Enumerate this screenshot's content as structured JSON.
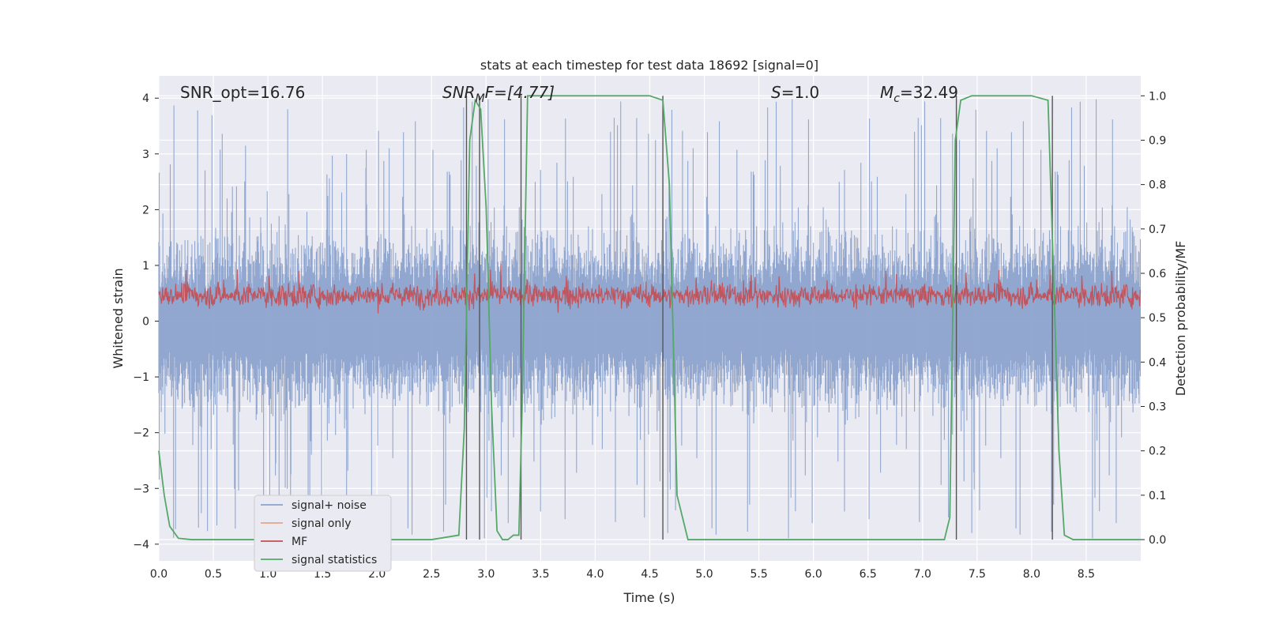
{
  "chart_data": {
    "type": "line",
    "title": "stats at each timestep for test data 18692 [signal=0]",
    "xlabel": "Time (s)",
    "ylabel": "Whitened strain",
    "ylabel_right": "Detection probability/MF",
    "xlim": [
      0,
      9.0
    ],
    "ylim": [
      -4.3,
      4.4
    ],
    "ylim_right": [
      -0.048,
      1.045
    ],
    "x_ticks": [
      "0.0",
      "0.5",
      "1.0",
      "1.5",
      "2.0",
      "2.5",
      "3.0",
      "3.5",
      "4.0",
      "4.5",
      "5.0",
      "5.5",
      "6.0",
      "6.5",
      "7.0",
      "7.5",
      "8.0",
      "8.5"
    ],
    "y_ticks": [
      "4",
      "3",
      "2",
      "1",
      "0",
      "−1",
      "−2",
      "−3",
      "−4"
    ],
    "y_ticks_right": [
      "1.0",
      "0.9",
      "0.8",
      "0.7",
      "0.6",
      "0.5",
      "0.4",
      "0.3",
      "0.2",
      "0.1",
      "0.0"
    ],
    "grid": true,
    "legend_position": "lower-left",
    "annotations": {
      "snr_opt": "SNR_opt=16.76",
      "snr_mf_main": "SNR",
      "snr_mf_sub": "M",
      "snr_mf_rest": "F=[4.77]",
      "s_main": "S",
      "s_rest": "=1.0",
      "mc_main": "M",
      "mc_sub": "c",
      "mc_rest": "=32.49"
    },
    "series": [
      {
        "name": "signal+ noise",
        "color": "#8da3cc",
        "envelope": {
          "upper_typical": 2.0,
          "upper_peak": 4.0,
          "lower_typical": -2.0,
          "lower_peak": -3.9
        }
      },
      {
        "name": "signal only",
        "color": "#e8a687",
        "values": []
      },
      {
        "name": "MF",
        "color": "#c44e52",
        "envelope": {
          "mean": 0.55,
          "low": 0.5,
          "high": 0.63
        }
      },
      {
        "name": "signal statistics",
        "color": "#55a868",
        "x": [
          0,
          0.05,
          0.1,
          0.18,
          0.3,
          0.5,
          1.0,
          1.5,
          2.0,
          2.5,
          2.75,
          2.8,
          2.85,
          2.9,
          2.95,
          3.0,
          3.05,
          3.1,
          3.15,
          3.2,
          3.25,
          3.3,
          3.33,
          3.38,
          3.45,
          3.6,
          4.0,
          4.5,
          4.62,
          4.68,
          4.75,
          4.85,
          5.0,
          5.5,
          6.0,
          6.5,
          7.0,
          7.2,
          7.25,
          7.3,
          7.35,
          7.45,
          7.6,
          8.0,
          8.15,
          8.2,
          8.25,
          8.3,
          8.38,
          8.5,
          9.0
        ],
        "y": [
          0.2,
          0.1,
          0.03,
          0.003,
          0.0,
          0.0,
          0.0,
          0.0,
          0.0,
          0.0,
          0.01,
          0.25,
          0.9,
          0.99,
          0.97,
          0.75,
          0.3,
          0.02,
          0.0,
          0.0,
          0.01,
          0.01,
          0.3,
          1.0,
          1.0,
          1.0,
          1.0,
          1.0,
          0.99,
          0.8,
          0.1,
          0.0,
          0.0,
          0.0,
          0.0,
          0.0,
          0.0,
          0.0,
          0.05,
          0.9,
          0.99,
          1.0,
          1.0,
          1.0,
          0.99,
          0.6,
          0.2,
          0.01,
          0.0,
          0.0,
          0.0
        ]
      }
    ],
    "vertical_markers": {
      "color": "#555555",
      "x": [
        2.82,
        2.94,
        3.32,
        4.62,
        7.31,
        8.19
      ]
    }
  }
}
